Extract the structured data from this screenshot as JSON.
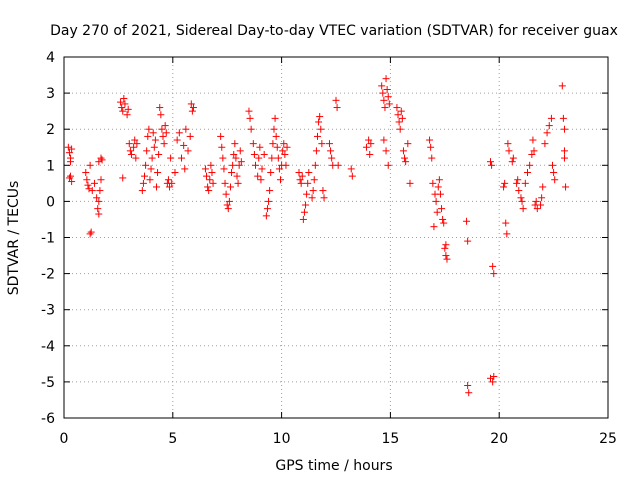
{
  "chart_data": {
    "type": "scatter",
    "title": "Day 270 of 2021, Sidereal Day-to-day VTEC variation (SDTVAR) for receiver guax",
    "xlabel": "GPS time / hours",
    "ylabel": "SDTVAR / TECUs",
    "xlim": [
      0,
      25
    ],
    "ylim": [
      -6,
      4
    ],
    "x_ticks": [
      0,
      5,
      10,
      15,
      20,
      25
    ],
    "y_ticks": [
      4,
      3,
      2,
      1,
      0,
      -1,
      -2,
      -3,
      -4,
      -5,
      -6
    ],
    "grid": true,
    "marker": "+",
    "color": "#ff0000",
    "series": [
      {
        "name": "guax",
        "points": [
          [
            0.2,
            1.5
          ],
          [
            0.25,
            1.35
          ],
          [
            0.3,
            1.1
          ],
          [
            0.3,
            0.7
          ],
          [
            0.35,
            0.55
          ],
          [
            0.25,
            0.65
          ],
          [
            0.3,
            1.2
          ],
          [
            0.35,
            1.45
          ],
          [
            1.0,
            0.8
          ],
          [
            1.05,
            0.6
          ],
          [
            1.1,
            0.45
          ],
          [
            1.15,
            0.35
          ],
          [
            1.2,
            1.0
          ],
          [
            1.25,
            -0.85
          ],
          [
            1.2,
            -0.9
          ],
          [
            1.3,
            0.3
          ],
          [
            1.4,
            0.5
          ],
          [
            1.5,
            0.1
          ],
          [
            1.55,
            -0.2
          ],
          [
            1.6,
            -0.35
          ],
          [
            1.6,
            0.0
          ],
          [
            1.65,
            0.3
          ],
          [
            1.7,
            0.6
          ],
          [
            1.6,
            1.1
          ],
          [
            1.7,
            1.2
          ],
          [
            1.75,
            1.15
          ],
          [
            2.6,
            2.75
          ],
          [
            2.65,
            2.6
          ],
          [
            2.7,
            2.5
          ],
          [
            2.75,
            2.85
          ],
          [
            2.7,
            0.65
          ],
          [
            2.8,
            2.7
          ],
          [
            2.9,
            2.4
          ],
          [
            2.95,
            2.55
          ],
          [
            3.0,
            1.6
          ],
          [
            3.05,
            1.4
          ],
          [
            3.1,
            1.3
          ],
          [
            3.2,
            1.5
          ],
          [
            3.25,
            1.7
          ],
          [
            3.3,
            1.2
          ],
          [
            3.35,
            1.6
          ],
          [
            3.6,
            0.3
          ],
          [
            3.65,
            0.5
          ],
          [
            3.7,
            0.7
          ],
          [
            3.75,
            1.0
          ],
          [
            3.8,
            1.4
          ],
          [
            3.85,
            1.8
          ],
          [
            3.9,
            2.0
          ],
          [
            3.95,
            0.6
          ],
          [
            4.0,
            0.9
          ],
          [
            4.05,
            1.2
          ],
          [
            4.1,
            1.9
          ],
          [
            4.15,
            1.5
          ],
          [
            4.2,
            1.7
          ],
          [
            4.25,
            0.4
          ],
          [
            4.3,
            0.8
          ],
          [
            4.35,
            1.3
          ],
          [
            4.4,
            2.6
          ],
          [
            4.45,
            2.4
          ],
          [
            4.5,
            2.0
          ],
          [
            4.55,
            1.8
          ],
          [
            4.6,
            1.6
          ],
          [
            4.65,
            2.1
          ],
          [
            4.7,
            1.9
          ],
          [
            4.75,
            0.5
          ],
          [
            4.8,
            0.6
          ],
          [
            4.85,
            0.4
          ],
          [
            4.9,
            1.2
          ],
          [
            4.95,
            0.5
          ],
          [
            5.1,
            0.8
          ],
          [
            5.2,
            1.7
          ],
          [
            5.3,
            1.9
          ],
          [
            5.4,
            1.2
          ],
          [
            5.5,
            1.55
          ],
          [
            5.55,
            0.9
          ],
          [
            5.6,
            2.0
          ],
          [
            5.7,
            1.4
          ],
          [
            5.8,
            1.8
          ],
          [
            5.85,
            2.7
          ],
          [
            5.9,
            2.5
          ],
          [
            5.95,
            2.6
          ],
          [
            6.5,
            0.9
          ],
          [
            6.55,
            0.7
          ],
          [
            6.6,
            0.4
          ],
          [
            6.65,
            0.3
          ],
          [
            6.7,
            0.6
          ],
          [
            6.75,
            1.0
          ],
          [
            6.8,
            0.8
          ],
          [
            6.85,
            0.5
          ],
          [
            7.2,
            1.8
          ],
          [
            7.25,
            1.5
          ],
          [
            7.3,
            1.2
          ],
          [
            7.35,
            0.9
          ],
          [
            7.4,
            0.5
          ],
          [
            7.45,
            0.2
          ],
          [
            7.5,
            -0.1
          ],
          [
            7.55,
            -0.2
          ],
          [
            7.6,
            0.0
          ],
          [
            7.65,
            0.4
          ],
          [
            7.7,
            0.8
          ],
          [
            7.75,
            1.0
          ],
          [
            7.8,
            1.3
          ],
          [
            7.85,
            1.6
          ],
          [
            7.9,
            1.2
          ],
          [
            7.95,
            0.7
          ],
          [
            8.0,
            0.5
          ],
          [
            8.05,
            1.0
          ],
          [
            8.1,
            1.4
          ],
          [
            8.15,
            1.1
          ],
          [
            8.5,
            2.5
          ],
          [
            8.55,
            2.3
          ],
          [
            8.6,
            2.0
          ],
          [
            8.7,
            1.6
          ],
          [
            8.75,
            1.3
          ],
          [
            8.8,
            1.0
          ],
          [
            8.9,
            0.7
          ],
          [
            8.95,
            1.2
          ],
          [
            9.0,
            1.5
          ],
          [
            9.05,
            0.6
          ],
          [
            9.1,
            0.9
          ],
          [
            9.2,
            1.3
          ],
          [
            9.3,
            -0.4
          ],
          [
            9.35,
            -0.2
          ],
          [
            9.4,
            0.0
          ],
          [
            9.45,
            0.3
          ],
          [
            9.5,
            0.8
          ],
          [
            9.55,
            1.2
          ],
          [
            9.6,
            1.6
          ],
          [
            9.65,
            2.0
          ],
          [
            9.7,
            2.3
          ],
          [
            9.75,
            1.8
          ],
          [
            9.8,
            1.5
          ],
          [
            9.85,
            1.2
          ],
          [
            9.9,
            0.9
          ],
          [
            9.95,
            0.6
          ],
          [
            10.0,
            1.0
          ],
          [
            10.05,
            1.4
          ],
          [
            10.1,
            1.6
          ],
          [
            10.15,
            1.3
          ],
          [
            10.2,
            1.0
          ],
          [
            10.25,
            1.5
          ],
          [
            10.8,
            0.8
          ],
          [
            10.85,
            0.6
          ],
          [
            10.9,
            0.5
          ],
          [
            10.95,
            0.7
          ],
          [
            11.0,
            -0.5
          ],
          [
            11.05,
            -0.3
          ],
          [
            11.1,
            -0.1
          ],
          [
            11.15,
            0.2
          ],
          [
            11.2,
            0.5
          ],
          [
            11.25,
            0.8
          ],
          [
            11.4,
            0.1
          ],
          [
            11.45,
            0.3
          ],
          [
            11.5,
            0.6
          ],
          [
            11.55,
            1.0
          ],
          [
            11.6,
            1.4
          ],
          [
            11.65,
            1.8
          ],
          [
            11.7,
            2.2
          ],
          [
            11.75,
            2.35
          ],
          [
            11.8,
            2.0
          ],
          [
            11.85,
            1.6
          ],
          [
            11.9,
            0.3
          ],
          [
            11.95,
            0.1
          ],
          [
            12.2,
            1.6
          ],
          [
            12.25,
            1.4
          ],
          [
            12.3,
            1.2
          ],
          [
            12.35,
            1.0
          ],
          [
            12.5,
            2.8
          ],
          [
            12.55,
            2.6
          ],
          [
            12.6,
            1.0
          ],
          [
            13.2,
            0.9
          ],
          [
            13.25,
            0.7
          ],
          [
            13.9,
            1.5
          ],
          [
            14.0,
            1.7
          ],
          [
            14.05,
            1.3
          ],
          [
            14.1,
            1.6
          ],
          [
            14.6,
            3.2
          ],
          [
            14.65,
            3.0
          ],
          [
            14.7,
            2.8
          ],
          [
            14.75,
            2.6
          ],
          [
            14.8,
            3.4
          ],
          [
            14.85,
            3.1
          ],
          [
            14.9,
            2.9
          ],
          [
            14.95,
            2.7
          ],
          [
            14.7,
            1.7
          ],
          [
            14.8,
            1.4
          ],
          [
            14.9,
            1.0
          ],
          [
            15.3,
            2.6
          ],
          [
            15.35,
            2.4
          ],
          [
            15.4,
            2.2
          ],
          [
            15.45,
            2.0
          ],
          [
            15.5,
            2.5
          ],
          [
            15.55,
            2.3
          ],
          [
            15.6,
            1.4
          ],
          [
            15.65,
            1.2
          ],
          [
            15.7,
            1.1
          ],
          [
            15.8,
            1.6
          ],
          [
            15.9,
            0.5
          ],
          [
            16.8,
            1.7
          ],
          [
            16.85,
            1.5
          ],
          [
            16.9,
            1.2
          ],
          [
            16.95,
            0.5
          ],
          [
            17.0,
            -0.7
          ],
          [
            17.05,
            0.2
          ],
          [
            17.1,
            0.0
          ],
          [
            17.15,
            -0.3
          ],
          [
            17.2,
            0.4
          ],
          [
            17.25,
            0.6
          ],
          [
            17.3,
            0.2
          ],
          [
            17.35,
            -0.2
          ],
          [
            17.4,
            -0.5
          ],
          [
            17.45,
            -0.6
          ],
          [
            17.5,
            -1.3
          ],
          [
            17.55,
            -1.5
          ],
          [
            17.6,
            -1.6
          ],
          [
            17.55,
            -1.2
          ],
          [
            18.5,
            -0.55
          ],
          [
            18.55,
            -1.1
          ],
          [
            18.55,
            -5.1
          ],
          [
            18.6,
            -5.3
          ],
          [
            19.6,
            1.1
          ],
          [
            19.65,
            1.0
          ],
          [
            19.7,
            -1.8
          ],
          [
            19.75,
            -2.0
          ],
          [
            19.6,
            -4.9
          ],
          [
            19.7,
            -5.0
          ],
          [
            19.75,
            -4.85
          ],
          [
            20.2,
            0.4
          ],
          [
            20.25,
            0.5
          ],
          [
            20.3,
            -0.6
          ],
          [
            20.35,
            -0.9
          ],
          [
            20.4,
            1.6
          ],
          [
            20.45,
            1.4
          ],
          [
            20.6,
            1.1
          ],
          [
            20.65,
            1.2
          ],
          [
            20.8,
            0.5
          ],
          [
            20.85,
            0.6
          ],
          [
            20.9,
            0.3
          ],
          [
            21.0,
            0.1
          ],
          [
            21.05,
            0.0
          ],
          [
            21.1,
            -0.2
          ],
          [
            21.2,
            0.5
          ],
          [
            21.3,
            0.8
          ],
          [
            21.4,
            1.0
          ],
          [
            21.5,
            1.3
          ],
          [
            21.55,
            1.7
          ],
          [
            21.6,
            1.4
          ],
          [
            21.65,
            -0.1
          ],
          [
            21.7,
            0.0
          ],
          [
            21.75,
            -0.2
          ],
          [
            21.9,
            -0.1
          ],
          [
            21.95,
            0.1
          ],
          [
            22.0,
            0.4
          ],
          [
            22.1,
            1.6
          ],
          [
            22.2,
            1.9
          ],
          [
            22.3,
            2.1
          ],
          [
            22.4,
            2.3
          ],
          [
            22.45,
            1.0
          ],
          [
            22.5,
            0.8
          ],
          [
            22.55,
            0.6
          ],
          [
            22.9,
            3.2
          ],
          [
            22.95,
            2.3
          ],
          [
            23.0,
            2.0
          ],
          [
            23.0,
            1.4
          ],
          [
            23.05,
            0.4
          ],
          [
            23.0,
            1.2
          ]
        ]
      }
    ]
  }
}
